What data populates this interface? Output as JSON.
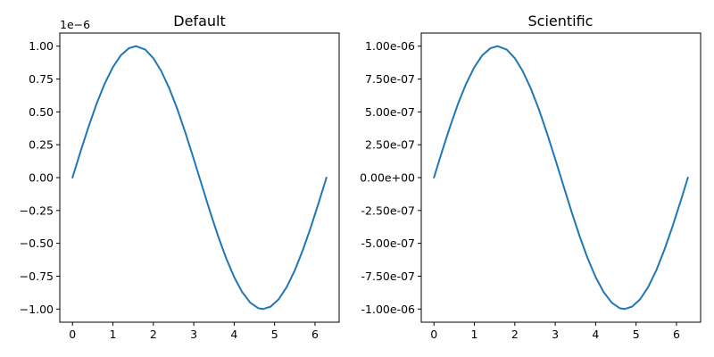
{
  "chart_data": [
    {
      "type": "line",
      "title": "Default",
      "xlabel": "",
      "ylabel": "",
      "xlim": [
        -0.314,
        6.597
      ],
      "ylim": [
        -1.1e-06,
        1.1e-06
      ],
      "grid": false,
      "x_ticks": [
        0,
        1,
        2,
        3,
        4,
        5,
        6
      ],
      "x_tick_labels": [
        "0",
        "1",
        "2",
        "3",
        "4",
        "5",
        "6"
      ],
      "y_ticks": [
        1e-06,
        7.5e-07,
        5e-07,
        2.5e-07,
        0,
        -2.5e-07,
        -5e-07,
        -7.5e-07,
        -1e-06
      ],
      "y_tick_labels": [
        "1.00",
        "0.75",
        "0.50",
        "0.25",
        "0.00",
        "−0.25",
        "−0.50",
        "−0.75",
        "−1.00"
      ],
      "y_offset_label": "1e−6",
      "series": [
        {
          "color": "#1f77b4",
          "x": [
            0,
            0.2,
            0.4,
            0.6,
            0.8,
            1.0,
            1.2,
            1.4,
            1.571,
            1.8,
            2.0,
            2.2,
            2.4,
            2.6,
            2.8,
            3.0,
            3.142,
            3.4,
            3.6,
            3.8,
            4.0,
            4.2,
            4.4,
            4.6,
            4.712,
            4.9,
            5.1,
            5.3,
            5.5,
            5.7,
            5.9,
            6.1,
            6.283
          ],
          "y": [
            0,
            1.99e-07,
            3.89e-07,
            5.65e-07,
            7.17e-07,
            8.41e-07,
            9.32e-07,
            9.85e-07,
            1e-06,
            9.74e-07,
            9.09e-07,
            8.08e-07,
            6.75e-07,
            5.16e-07,
            3.35e-07,
            1.41e-07,
            0,
            -2.56e-07,
            -4.43e-07,
            -6.12e-07,
            -7.57e-07,
            -8.72e-07,
            -9.52e-07,
            -9.94e-07,
            -1e-06,
            -9.82e-07,
            -9.26e-07,
            -8.32e-07,
            -7.06e-07,
            -5.5e-07,
            -3.74e-07,
            -1.82e-07,
            0
          ]
        }
      ]
    },
    {
      "type": "line",
      "title": "Scientific",
      "xlabel": "",
      "ylabel": "",
      "xlim": [
        -0.314,
        6.597
      ],
      "ylim": [
        -1.1e-06,
        1.1e-06
      ],
      "grid": false,
      "x_ticks": [
        0,
        1,
        2,
        3,
        4,
        5,
        6
      ],
      "x_tick_labels": [
        "0",
        "1",
        "2",
        "3",
        "4",
        "5",
        "6"
      ],
      "y_ticks": [
        1e-06,
        7.5e-07,
        5e-07,
        2.5e-07,
        0,
        -2.5e-07,
        -5e-07,
        -7.5e-07,
        -1e-06
      ],
      "y_tick_labels": [
        "1.00e-06",
        "7.50e-07",
        "5.00e-07",
        "2.50e-07",
        "0.00e+00",
        "-2.50e-07",
        "-5.00e-07",
        "-7.50e-07",
        "-1.00e-06"
      ],
      "y_offset_label": "",
      "series": [
        {
          "color": "#1f77b4",
          "x": [
            0,
            0.2,
            0.4,
            0.6,
            0.8,
            1.0,
            1.2,
            1.4,
            1.571,
            1.8,
            2.0,
            2.2,
            2.4,
            2.6,
            2.8,
            3.0,
            3.142,
            3.4,
            3.6,
            3.8,
            4.0,
            4.2,
            4.4,
            4.6,
            4.712,
            4.9,
            5.1,
            5.3,
            5.5,
            5.7,
            5.9,
            6.1,
            6.283
          ],
          "y": [
            0,
            1.99e-07,
            3.89e-07,
            5.65e-07,
            7.17e-07,
            8.41e-07,
            9.32e-07,
            9.85e-07,
            1e-06,
            9.74e-07,
            9.09e-07,
            8.08e-07,
            6.75e-07,
            5.16e-07,
            3.35e-07,
            1.41e-07,
            0,
            -2.56e-07,
            -4.43e-07,
            -6.12e-07,
            -7.57e-07,
            -8.72e-07,
            -9.52e-07,
            -9.94e-07,
            -1e-06,
            -9.82e-07,
            -9.26e-07,
            -8.32e-07,
            -7.06e-07,
            -5.5e-07,
            -3.74e-07,
            -1.82e-07,
            0
          ]
        }
      ]
    }
  ]
}
